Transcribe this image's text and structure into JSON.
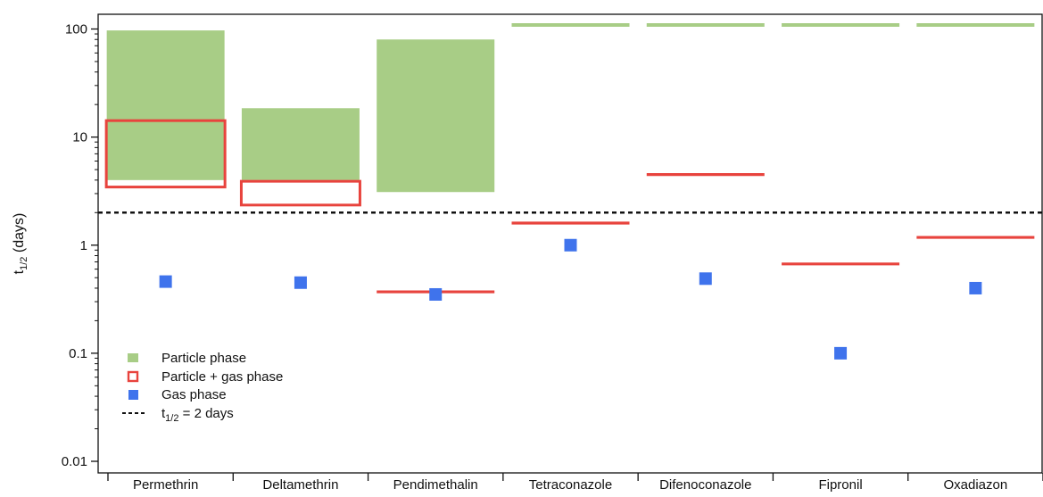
{
  "chart_data": {
    "type": "bar",
    "yscale": "log",
    "ylim": [
      0.0085,
      130
    ],
    "ylabel": {
      "main": "t",
      "sub": "1/2",
      "rest": " (days)"
    },
    "yticks": [
      {
        "value": 100,
        "label": "100"
      },
      {
        "value": 10,
        "label": "10"
      },
      {
        "value": 1,
        "label": "1"
      },
      {
        "value": 0.1,
        "label": "0.1"
      },
      {
        "value": 0.01,
        "label": "0.01"
      }
    ],
    "categories": [
      "Permethrin",
      "Deltamethrin",
      "Pendimethalin",
      "Tetraconazole",
      "Difenoconazole",
      "Fipronil",
      "Oxadiazon"
    ],
    "threshold": {
      "value": 2
    },
    "colors": {
      "particle": "#a8cd86",
      "particle_gas": "#e8433d",
      "gas": "#3f73ec",
      "threshold": "#111111"
    },
    "legend": {
      "position": "bottom-left",
      "entries": [
        {
          "key": "particle",
          "label": "Particle phase"
        },
        {
          "key": "particle_gas",
          "label": "Particle + gas phase"
        },
        {
          "key": "gas",
          "label": "Gas phase"
        },
        {
          "key": "threshold",
          "label_main": "t",
          "label_sub": "1/2",
          "label_rest": " = 2 days"
        }
      ]
    },
    "series": [
      {
        "key": "particle",
        "mark": "range-bar",
        "values": [
          {
            "category": "Permethrin",
            "low": 4.0,
            "high": 97
          },
          {
            "category": "Deltamethrin",
            "low": 4.0,
            "high": 18.5
          },
          {
            "category": "Pendimethalin",
            "low": 3.1,
            "high": 80
          },
          {
            "category": "Tetraconazole",
            "low": 105,
            "high": 110
          },
          {
            "category": "Difenoconazole",
            "low": 105,
            "high": 110
          },
          {
            "category": "Fipronil",
            "low": 105,
            "high": 110
          },
          {
            "category": "Oxadiazon",
            "low": 105,
            "high": 110
          }
        ]
      },
      {
        "key": "particle_gas",
        "mark": "range-box-or-line",
        "values": [
          {
            "category": "Permethrin",
            "low": 3.45,
            "high": 14.2
          },
          {
            "category": "Deltamethrin",
            "low": 2.35,
            "high": 3.9
          },
          {
            "category": "Pendimethalin",
            "value": 0.37
          },
          {
            "category": "Tetraconazole",
            "value": 1.6
          },
          {
            "category": "Difenoconazole",
            "value": 4.5
          },
          {
            "category": "Fipronil",
            "value": 0.67
          },
          {
            "category": "Oxadiazon",
            "value": 1.18
          }
        ]
      },
      {
        "key": "gas",
        "mark": "point",
        "values": [
          {
            "category": "Permethrin",
            "value": 0.46
          },
          {
            "category": "Deltamethrin",
            "value": 0.45
          },
          {
            "category": "Pendimethalin",
            "value": 0.35
          },
          {
            "category": "Tetraconazole",
            "value": 1.0
          },
          {
            "category": "Difenoconazole",
            "value": 0.49
          },
          {
            "category": "Fipronil",
            "value": 0.1
          },
          {
            "category": "Oxadiazon",
            "value": 0.4
          }
        ]
      }
    ],
    "grid": false
  }
}
